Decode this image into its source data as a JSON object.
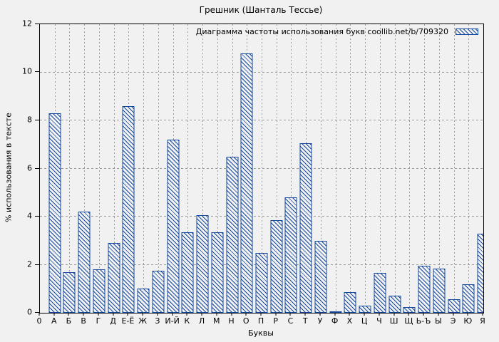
{
  "title": "Грешник (Шанталь Тессье)",
  "legend": {
    "label": "Диаграмма частоты использования букв coollib.net/b/709320",
    "swatch": "blue-hatched-box"
  },
  "axes": {
    "x_title": "Буквы",
    "y_title": "% использования в тексте",
    "origin_label": "0"
  },
  "colors": {
    "bar_blue": "#14489f",
    "grid_gray": "#9b9b9b",
    "background": "#f1f1f1",
    "axis_black": "#000000"
  },
  "chart_data": {
    "type": "bar",
    "title": "Грешник (Шанталь Тессье)",
    "xlabel": "Буквы",
    "ylabel": "% использования в тексте",
    "legend": "Диаграмма частоты использования букв coollib.net/b/709320",
    "legend_position": "top-right-inside",
    "ylim": [
      0,
      12
    ],
    "yticks": [
      0,
      2,
      4,
      6,
      8,
      10,
      12
    ],
    "grid_y_dashed_at": [
      2,
      4,
      6,
      8,
      10
    ],
    "grid_x": "dotted vertical line at every category",
    "bar_style": "hollow with blue diagonal hatch",
    "origin_label": "0",
    "categories": [
      "А",
      "Б",
      "В",
      "Г",
      "Д",
      "Е-Ё",
      "Ж",
      "З",
      "И-Й",
      "К",
      "Л",
      "М",
      "Н",
      "О",
      "П",
      "Р",
      "С",
      "Т",
      "У",
      "Ф",
      "Х",
      "Ц",
      "Ч",
      "Ш",
      "Щ",
      "Ь-Ъ",
      "Ы",
      "Э",
      "Ю",
      "Я"
    ],
    "values": [
      8.3,
      1.7,
      4.2,
      1.8,
      2.9,
      8.6,
      1.0,
      1.75,
      7.2,
      3.35,
      4.05,
      3.35,
      6.5,
      10.8,
      2.5,
      3.85,
      4.8,
      7.05,
      3.0,
      0.07,
      0.85,
      0.3,
      1.65,
      0.7,
      0.25,
      1.95,
      1.85,
      0.55,
      1.2,
      3.3
    ]
  }
}
